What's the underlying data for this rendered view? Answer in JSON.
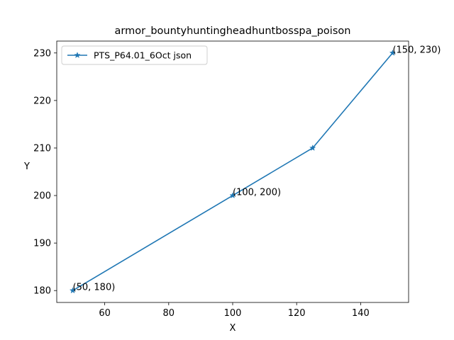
{
  "chart_data": {
    "type": "line",
    "title": "armor_bountyhuntingheadhuntbosspa_poison",
    "xlabel": "X",
    "ylabel": "Y",
    "xlim": [
      45,
      155
    ],
    "ylim": [
      177.5,
      232.5
    ],
    "xticks": [
      60,
      80,
      100,
      120,
      140
    ],
    "yticks": [
      180,
      190,
      200,
      210,
      220,
      230
    ],
    "grid": false,
    "legend_position": "top-left",
    "series": [
      {
        "name": "PTS_P64.01_6Oct json",
        "color": "#1f77b4",
        "marker": "star",
        "x": [
          50,
          100,
          125,
          150
        ],
        "y": [
          180,
          200,
          210,
          230
        ]
      }
    ],
    "annotations": [
      {
        "text": "(50, 180)",
        "x": 50,
        "y": 180
      },
      {
        "text": "(100, 200)",
        "x": 100,
        "y": 200
      },
      {
        "text": "(150, 230)",
        "x": 150,
        "y": 230
      }
    ]
  }
}
